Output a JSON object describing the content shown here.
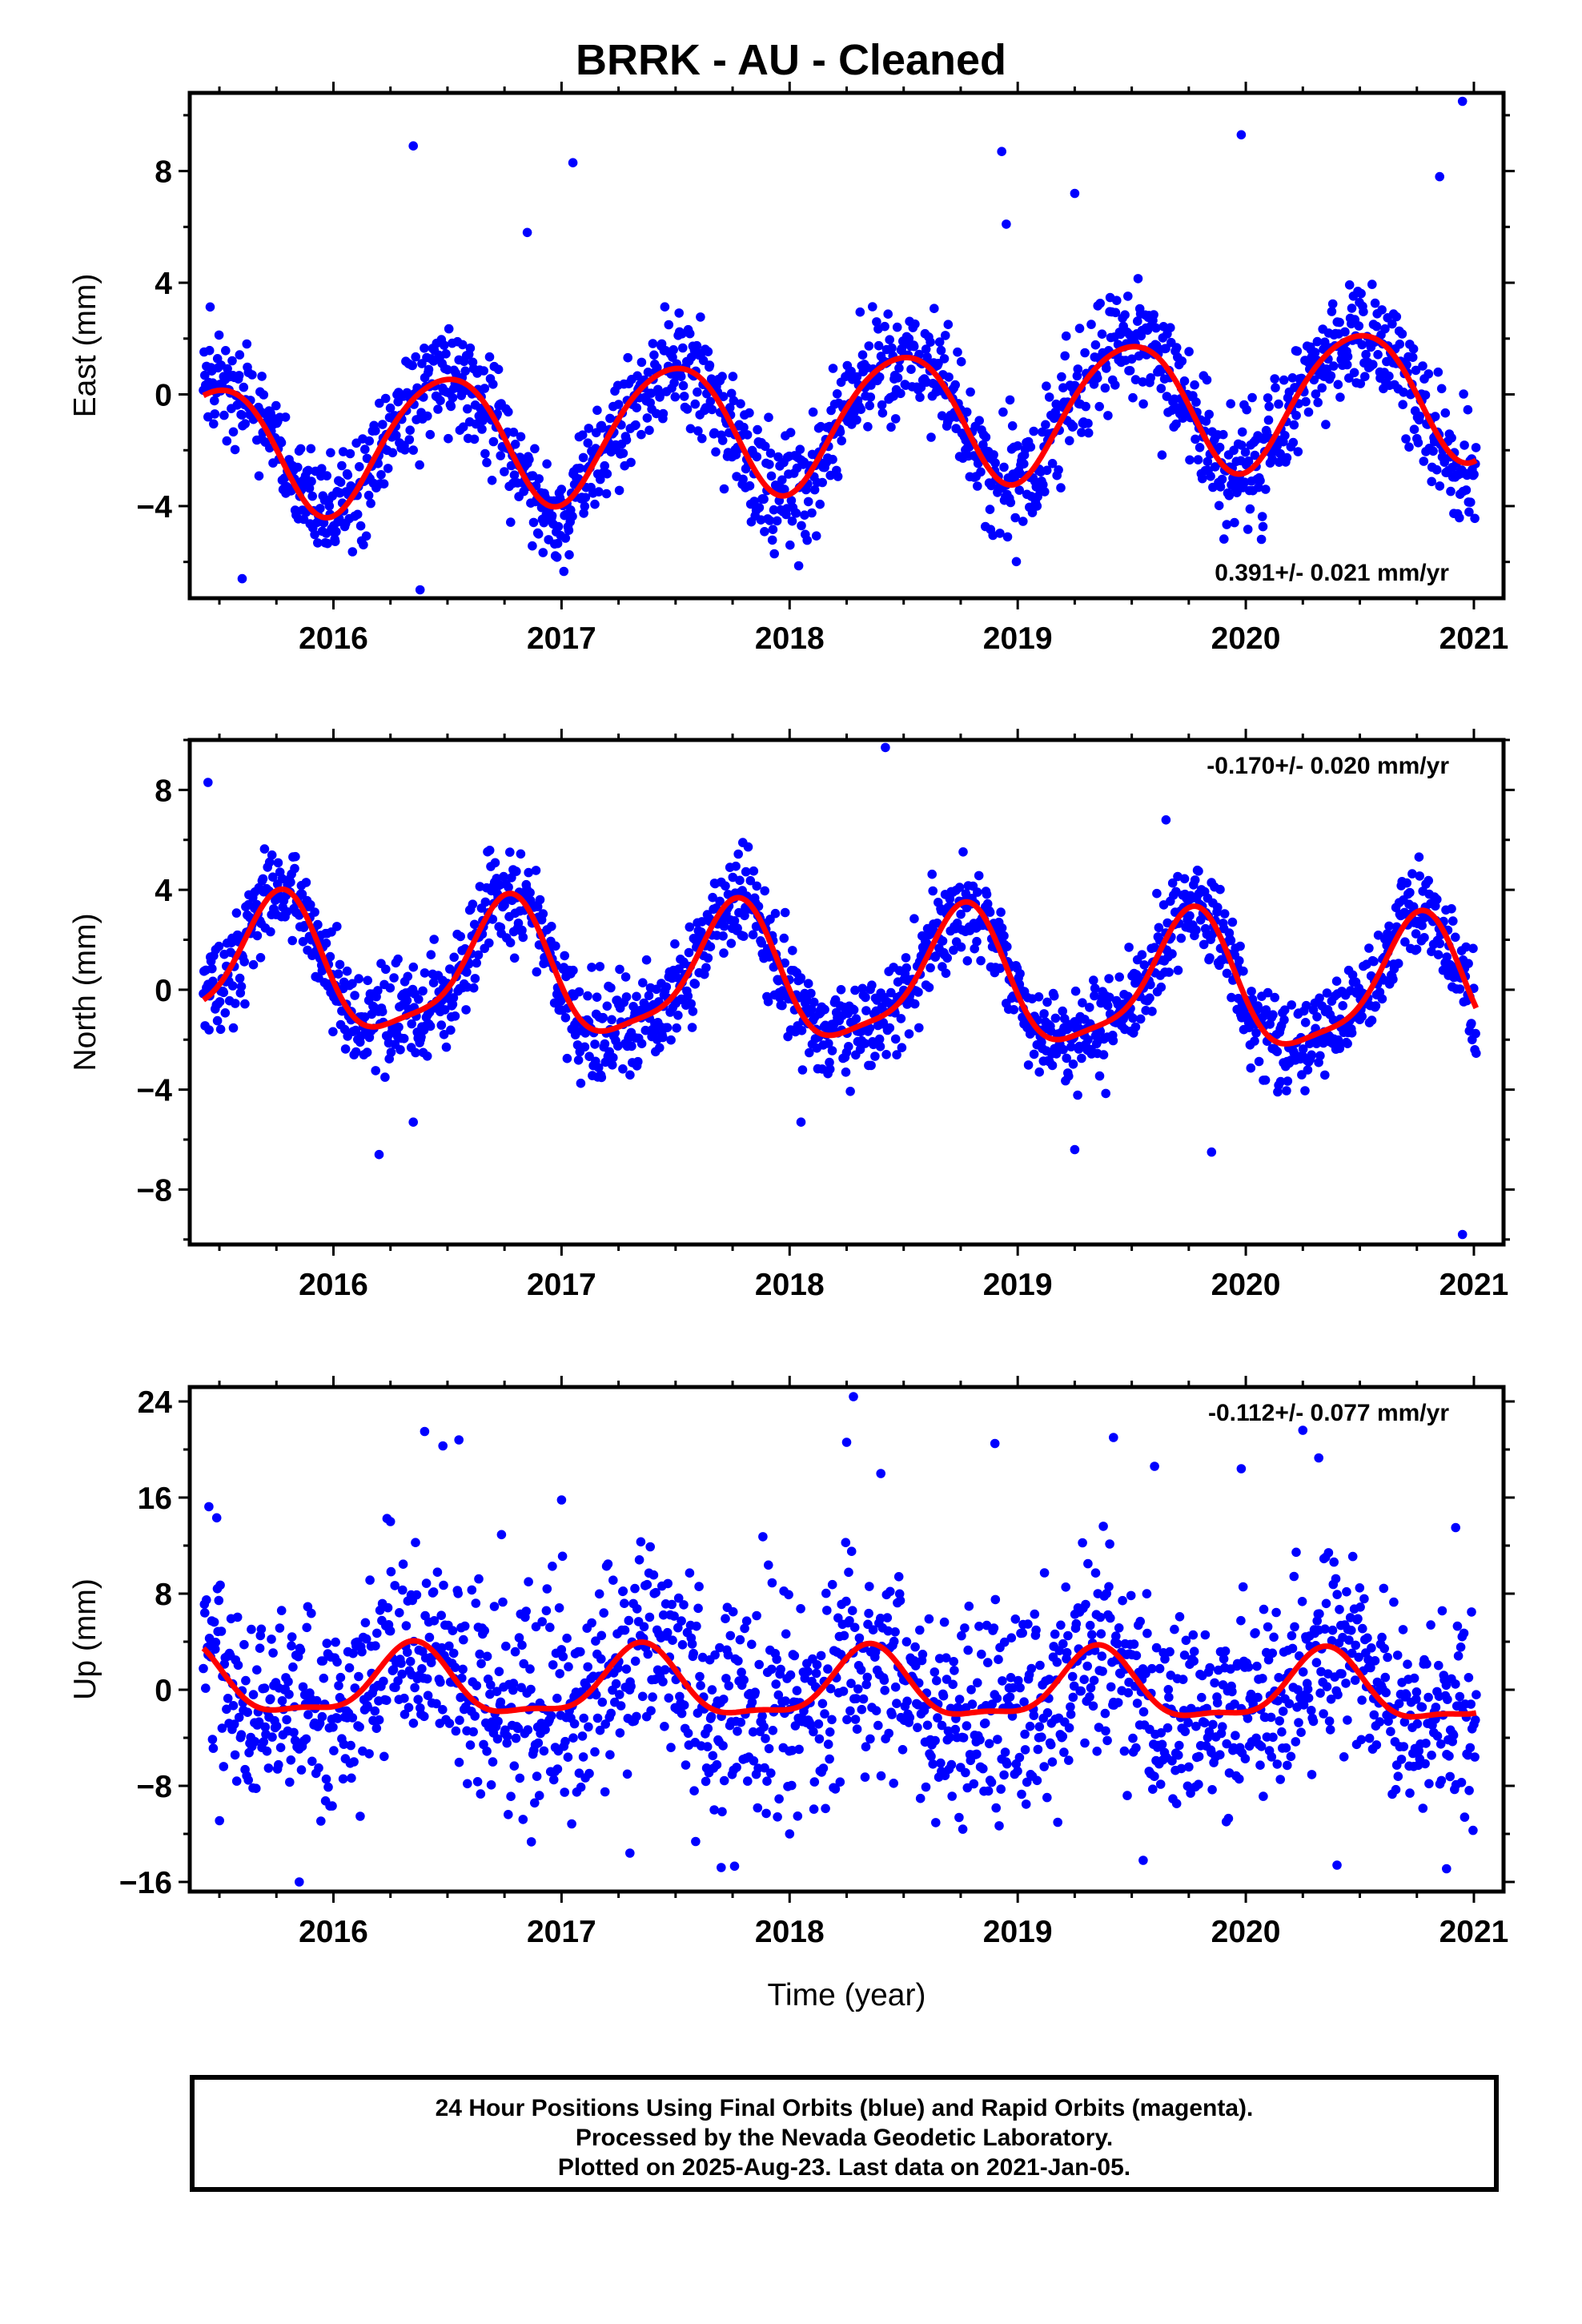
{
  "title": "BRRK  - AU - Cleaned",
  "colors": {
    "points": "#0000ff",
    "fit": "#ff0000",
    "frame": "#000000"
  },
  "chart_data": [
    {
      "type": "scatter",
      "ylabel": "East (mm)",
      "xlabel": "",
      "xlim": [
        2015.37,
        2021.13
      ],
      "ylim": [
        -7.3,
        10.8
      ],
      "xticks": [
        2016,
        2017,
        2018,
        2019,
        2020,
        2021
      ],
      "xtick_labels": [
        "2016",
        "2017",
        "2018",
        "2019",
        "2020",
        "2021"
      ],
      "yticks": [
        -4,
        0,
        4,
        8
      ],
      "ytick_labels": [
        "−4",
        "0",
        "4",
        "8"
      ],
      "rate_label": "0.391+/- 0.021 mm/yr",
      "rate_position": "bottom-right",
      "model": {
        "offset": -0.95,
        "rate": 0.391,
        "annual_cos": -2.35,
        "annual_sin": 0.25,
        "semi_cos": -0.2,
        "semi_sin": 0.15,
        "t0": 2018.2
      },
      "noise_sd": 1.0,
      "n_points": 1650,
      "series": [
        {
          "kind": "points",
          "color": "#0000ff"
        },
        {
          "kind": "fit",
          "color": "#ff0000"
        }
      ],
      "outliers": [
        [
          2016.35,
          8.9
        ],
        [
          2017.05,
          8.3
        ],
        [
          2018.93,
          8.7
        ],
        [
          2019.25,
          7.2
        ],
        [
          2019.98,
          9.3
        ],
        [
          2020.95,
          10.5
        ],
        [
          2016.38,
          -7.0
        ],
        [
          2015.6,
          -6.6
        ],
        [
          2016.85,
          5.8
        ],
        [
          2020.85,
          7.8
        ],
        [
          2018.95,
          6.1
        ]
      ]
    },
    {
      "type": "scatter",
      "ylabel": "North (mm)",
      "xlabel": "",
      "xlim": [
        2015.37,
        2021.13
      ],
      "ylim": [
        -10.2,
        10.0
      ],
      "xticks": [
        2016,
        2017,
        2018,
        2019,
        2020,
        2021
      ],
      "xtick_labels": [
        "2016",
        "2017",
        "2018",
        "2019",
        "2020",
        "2021"
      ],
      "yticks": [
        -8,
        -4,
        0,
        4,
        8
      ],
      "ytick_labels": [
        "−8",
        "−4",
        "0",
        "4",
        "8"
      ],
      "rate_label": "-0.170+/- 0.020 mm/yr",
      "rate_position": "top-right",
      "model": {
        "offset": 0.4,
        "rate": -0.17,
        "annual_cos": 0.1,
        "annual_sin": -2.6,
        "semi_cos": -0.55,
        "semi_sin": -0.35,
        "t0": 2018.2
      },
      "noise_sd": 0.95,
      "n_points": 1650,
      "series": [
        {
          "kind": "points",
          "color": "#0000ff"
        },
        {
          "kind": "fit",
          "color": "#ff0000"
        }
      ],
      "outliers": [
        [
          2015.45,
          8.3
        ],
        [
          2018.42,
          9.7
        ],
        [
          2019.65,
          6.8
        ],
        [
          2016.2,
          -6.6
        ],
        [
          2016.35,
          -5.3
        ],
        [
          2019.85,
          -6.5
        ],
        [
          2020.95,
          -9.8
        ],
        [
          2019.25,
          -6.4
        ],
        [
          2018.05,
          -5.3
        ]
      ]
    },
    {
      "type": "scatter",
      "ylabel": "Up (mm)",
      "xlabel": "Time (year)",
      "xlim": [
        2015.37,
        2021.13
      ],
      "ylim": [
        -16.8,
        25.2
      ],
      "xticks": [
        2016,
        2017,
        2018,
        2019,
        2020,
        2021
      ],
      "xtick_labels": [
        "2016",
        "2017",
        "2018",
        "2019",
        "2020",
        "2021"
      ],
      "yticks": [
        -16,
        -8,
        0,
        8,
        16,
        24
      ],
      "ytick_labels": [
        "−16",
        "−8",
        "0",
        "8",
        "16",
        "24"
      ],
      "rate_label": "-0.112+/- 0.077 mm/yr",
      "rate_position": "top-right",
      "model": {
        "offset": 0.15,
        "rate": -0.112,
        "annual_cos": -1.6,
        "annual_sin": 2.3,
        "semi_cos": -0.2,
        "semi_sin": -0.9,
        "t0": 2018.2
      },
      "noise_sd": 4.2,
      "n_points": 1650,
      "series": [
        {
          "kind": "points",
          "color": "#0000ff"
        },
        {
          "kind": "fit",
          "color": "#ff0000"
        }
      ],
      "outliers": [
        [
          2016.4,
          21.5
        ],
        [
          2016.48,
          20.3
        ],
        [
          2016.55,
          20.8
        ],
        [
          2018.28,
          24.4
        ],
        [
          2018.25,
          20.6
        ],
        [
          2018.4,
          18.0
        ],
        [
          2018.9,
          20.5
        ],
        [
          2019.42,
          21.0
        ],
        [
          2019.6,
          18.6
        ],
        [
          2019.98,
          18.4
        ],
        [
          2020.25,
          21.6
        ],
        [
          2020.32,
          19.3
        ],
        [
          2015.85,
          -16.0
        ],
        [
          2017.3,
          -13.6
        ],
        [
          2017.7,
          -14.8
        ],
        [
          2019.55,
          -14.2
        ],
        [
          2020.4,
          -14.6
        ],
        [
          2020.88,
          -14.9
        ],
        [
          2018.0,
          -12.0
        ],
        [
          2020.92,
          13.5
        ],
        [
          2016.25,
          14.0
        ],
        [
          2017.0,
          15.8
        ]
      ]
    }
  ],
  "caption": {
    "line1": "24 Hour Positions Using Final Orbits (blue) and Rapid Orbits (magenta).",
    "line2": "Processed by the Nevada Geodetic Laboratory.",
    "line3": "Plotted on 2025-Aug-23. Last data on 2021-Jan-05."
  }
}
